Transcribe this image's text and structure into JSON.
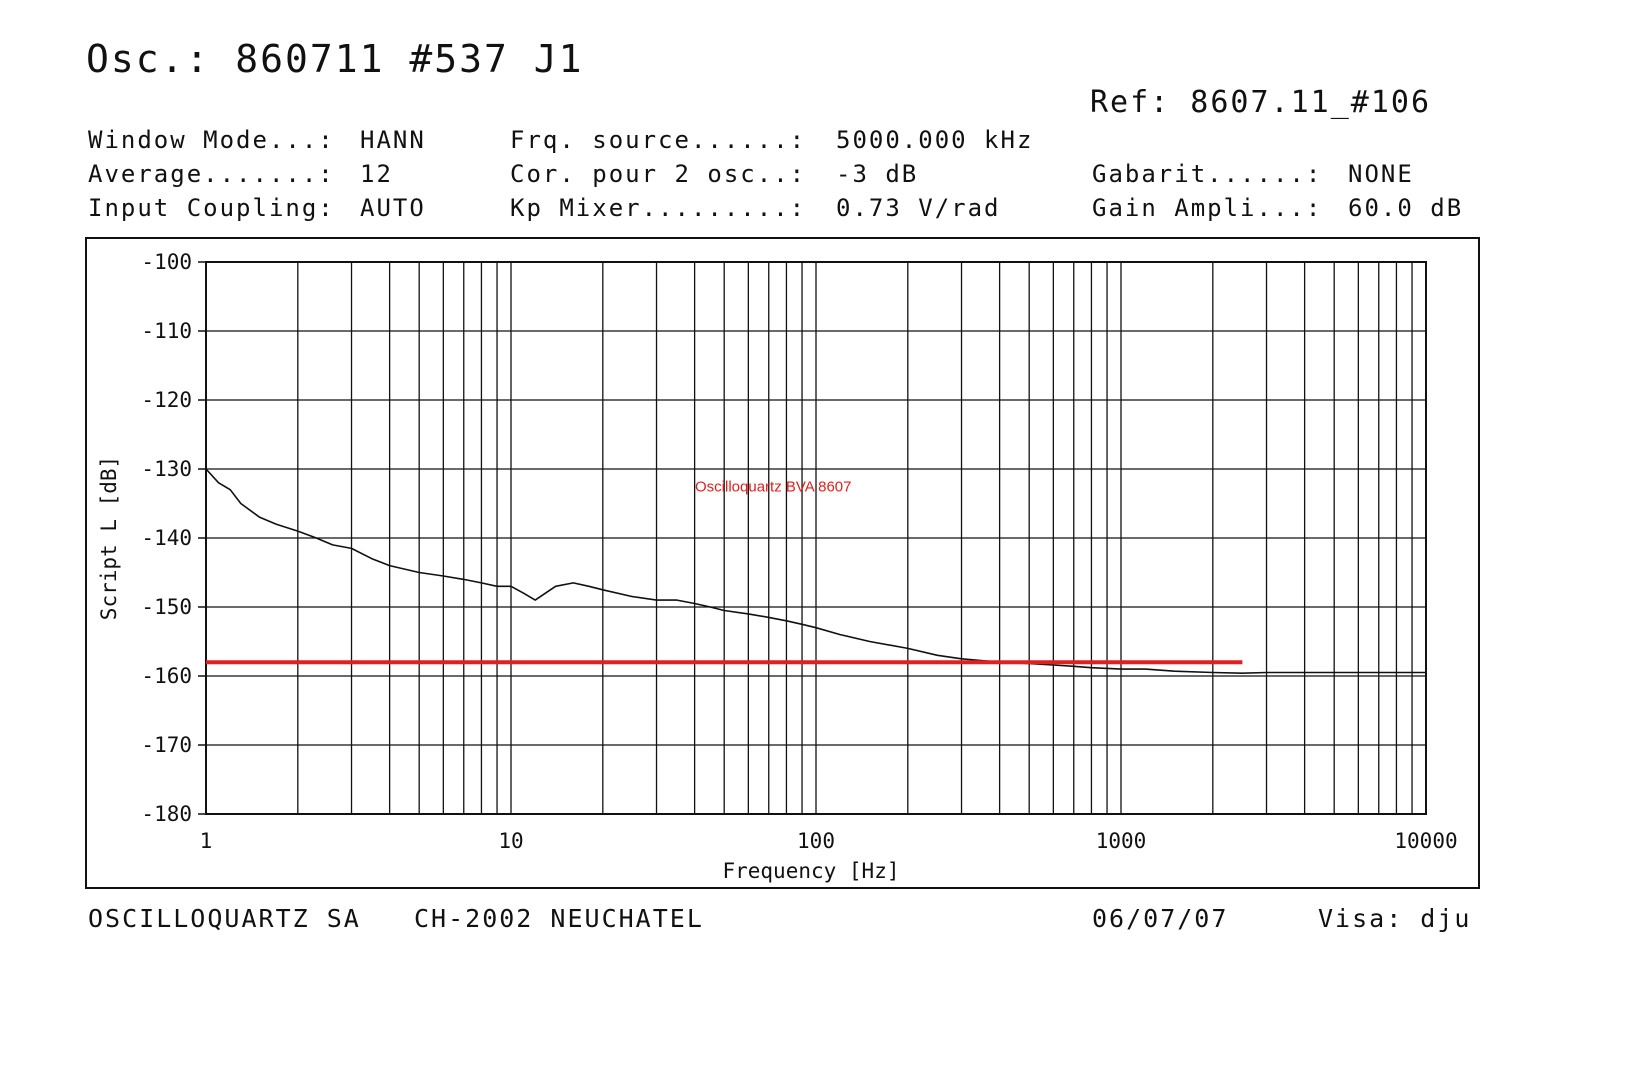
{
  "header": {
    "osc_title": "Osc.: 860711 #537 J1",
    "ref": "Ref: 8607.11_#106",
    "params": [
      {
        "label": "Window Mode...:",
        "value": "HANN"
      },
      {
        "label": "Average.......:",
        "value": "12"
      },
      {
        "label": "Input Coupling:",
        "value": "AUTO"
      },
      {
        "label": "Frq. source......:",
        "value": "5000.000 kHz"
      },
      {
        "label": "Cor. pour 2 osc..:",
        "value": "-3 dB"
      },
      {
        "label": "Kp Mixer.........:",
        "value": "0.73 V/rad"
      },
      {
        "label": "Gabarit......:",
        "value": "NONE"
      },
      {
        "label": "Gain Ampli...:",
        "value": "60.0 dB"
      }
    ]
  },
  "footer": {
    "company": "OSCILLOQUARTZ SA",
    "location": "CH-2002 NEUCHATEL",
    "date": "06/07/07",
    "visa": "Visa: dju"
  },
  "chart_data": {
    "type": "line",
    "title": "",
    "xlabel": "Frequency [Hz]",
    "ylabel": "Script L [dB]",
    "x_scale": "log",
    "xlim": [
      1,
      10000
    ],
    "ylim": [
      -180,
      -100
    ],
    "x_ticks": [
      1,
      10,
      100,
      1000,
      10000
    ],
    "x_tick_labels": [
      "1",
      "10",
      "100",
      "1000",
      "10000"
    ],
    "y_ticks": [
      -100,
      -110,
      -120,
      -130,
      -140,
      -150,
      -160,
      -170,
      -180
    ],
    "y_tick_labels": [
      "-100",
      "-110",
      "-120",
      "-130",
      "-140",
      "-150",
      "-160",
      "-170",
      "-180"
    ],
    "grid": true,
    "annotation": {
      "text": "Oscilloquartz BVA 8607",
      "color": "#e02020",
      "x": 10,
      "y": -133
    },
    "series": [
      {
        "color": "#111111",
        "x": [
          1,
          1.1,
          1.2,
          1.3,
          1.5,
          1.7,
          2,
          2.3,
          2.6,
          3,
          3.5,
          4,
          5,
          6,
          7,
          8,
          9,
          10,
          11,
          12,
          14,
          16,
          18,
          20,
          25,
          30,
          35,
          40,
          45,
          50,
          60,
          70,
          80,
          90,
          100,
          120,
          150,
          200,
          250,
          300,
          400,
          500,
          600,
          700,
          800,
          1000,
          1200,
          1500,
          2000,
          2500,
          3000,
          4000,
          5000,
          7000,
          10000
        ],
        "y": [
          -130,
          -132,
          -133,
          -135,
          -137,
          -138,
          -139,
          -140,
          -141,
          -141.5,
          -143,
          -144,
          -145,
          -145.5,
          -146,
          -146.5,
          -147,
          -147,
          -148,
          -149,
          -147,
          -146.5,
          -147,
          -147.5,
          -148.5,
          -149,
          -149,
          -149.5,
          -150,
          -150.5,
          -151,
          -151.5,
          -152,
          -152.5,
          -153,
          -154,
          -155,
          -156,
          -157,
          -157.5,
          -158,
          -158.2,
          -158.4,
          -158.6,
          -158.8,
          -159,
          -159,
          -159.3,
          -159.5,
          -159.6,
          -159.5,
          -159.5,
          -159.5,
          -159.5,
          -159.5
        ]
      },
      {
        "color": "#e02020",
        "x": [
          1,
          2500
        ],
        "y": [
          -158,
          -158
        ]
      }
    ]
  }
}
